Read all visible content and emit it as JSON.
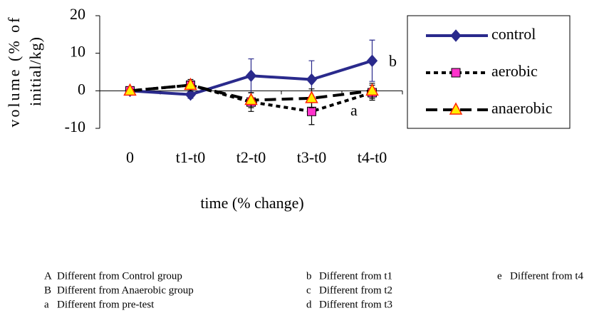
{
  "chart_data": {
    "type": "line",
    "y_label_lines": [
      "volume (% of",
      "initial/kg)"
    ],
    "x_label": "time (% change)",
    "categories": [
      "0",
      "t1-t0",
      "t2-t0",
      "t3-t0",
      "t4-t0"
    ],
    "series": [
      {
        "name": "control",
        "color": "#2a2a8c",
        "marker": "diamond",
        "dash": "none",
        "values": [
          0,
          -1,
          4,
          3,
          8
        ],
        "errors": [
          null,
          1,
          4.5,
          5,
          5.5
        ]
      },
      {
        "name": "aerobic",
        "color": "#000000",
        "marker_color": "#ff33cc",
        "marker": "square",
        "dash": "6 5",
        "values": [
          0,
          1.5,
          -3,
          -5.5,
          -0.5
        ],
        "errors": [
          null,
          1.5,
          2.5,
          3.5,
          2
        ]
      },
      {
        "name": "anaerobic",
        "color": "#000000",
        "marker_color": "#ffee00",
        "marker": "triangle",
        "dash": "16 8",
        "values": [
          0,
          1.5,
          -2.5,
          -2,
          0
        ],
        "errors": [
          null,
          1,
          2,
          2.5,
          2
        ]
      }
    ],
    "annotations": [
      "b",
      "a"
    ],
    "ylim": [
      -10,
      20
    ],
    "yticks": [
      -10,
      0,
      10,
      20
    ],
    "notes": [
      {
        "symbol": "A",
        "text": "Different from Control group"
      },
      {
        "symbol": "B",
        "text": "Different from Anaerobic group"
      },
      {
        "symbol": "a",
        "text": "Different from pre-test"
      },
      {
        "symbol": "b",
        "text": "Different from t1"
      },
      {
        "symbol": "c",
        "text": "Different from t2"
      },
      {
        "symbol": "d",
        "text": "Different from t3"
      },
      {
        "symbol": "e",
        "text": "Different from t4"
      }
    ]
  }
}
